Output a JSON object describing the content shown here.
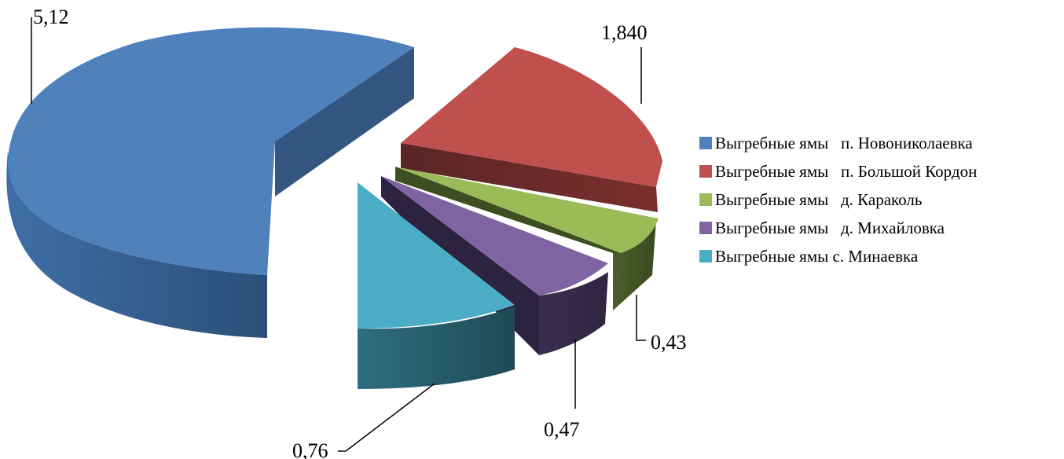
{
  "chart_data": {
    "type": "pie",
    "style": "3d-exploded",
    "legend_position": "right",
    "series": [
      {
        "name": "Выгребные ямы   п. Новониколаевка",
        "value": 5.12,
        "label": "5,12",
        "color": "#4F81BD"
      },
      {
        "name": "Выгребные ямы   п. Большой Кордон",
        "value": 1.84,
        "label": "1,840",
        "color": "#C0504D"
      },
      {
        "name": "Выгребные ямы   д. Караколь",
        "value": 0.43,
        "label": "0,43",
        "color": "#9BBB59"
      },
      {
        "name": "Выгребные ямы   д. Михайловка",
        "value": 0.47,
        "label": "0,47",
        "color": "#8064A2"
      },
      {
        "name": "Выгребные ямы с. Минаевка",
        "value": 0.76,
        "label": "0,76",
        "color": "#4BACC6"
      }
    ]
  }
}
